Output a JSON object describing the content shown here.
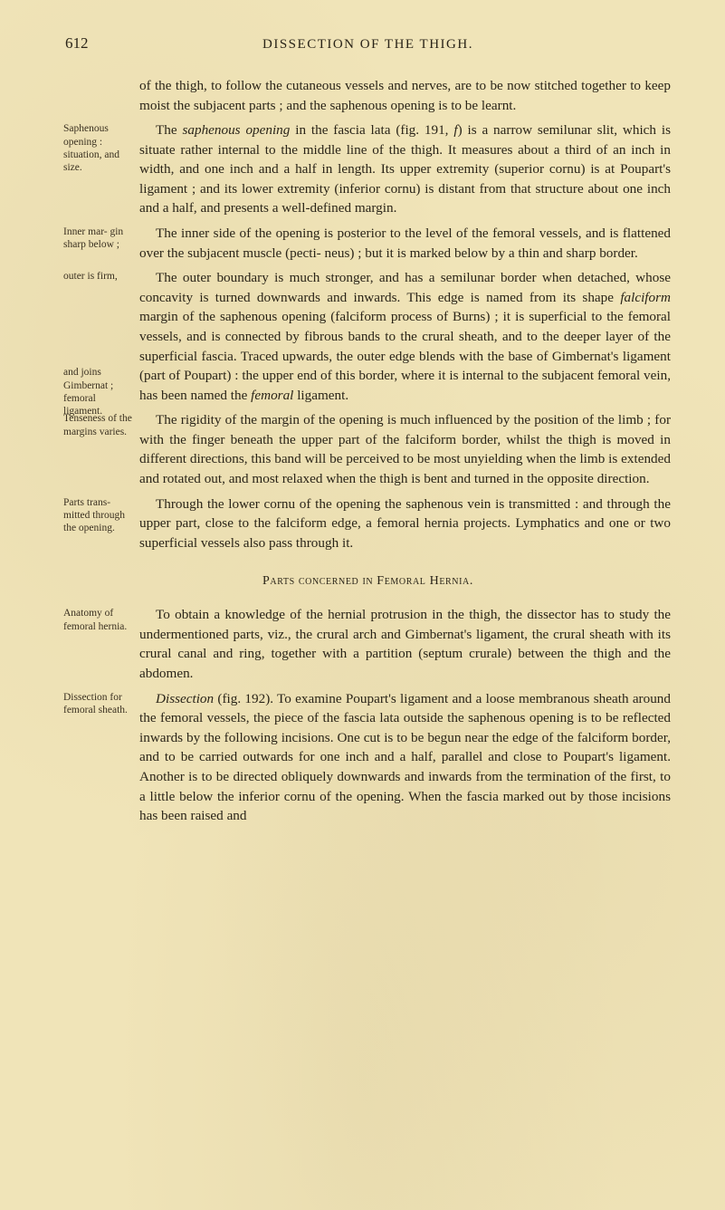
{
  "page_number": "612",
  "running_head": "DISSECTION OF THE THIGH.",
  "colors": {
    "paper": "#f0e4b8",
    "ink": "#2a2418",
    "margin_ink": "#3a3020"
  },
  "typography": {
    "body_fontsize_pt": 15.2,
    "margin_fontsize_pt": 11.5,
    "line_height": 1.42
  },
  "blocks": [
    {
      "margin": "",
      "text": "of the thigh, to follow the cutaneous vessels and nerves, are to be now stitched together to keep moist the subjacent parts ; and the saphenous opening is to be learnt.",
      "indent": false
    },
    {
      "margin": "Saphenous opening : situation, and size.",
      "text": "The <span class=\"italic\">saphenous opening</span> in the fascia lata (fig. 191, <span class=\"italic\">f</span>) is a narrow semilunar slit, which is situate rather internal to the middle line of the thigh. It measures about a third of an inch in width, and one inch and a half in length. Its upper extremity (superior cornu) is at Poupart's ligament ; and its lower extremity (inferior cornu) is distant from that structure about one inch and a half, and presents a well-defined margin.",
      "indent": true
    },
    {
      "margin": "Inner mar- gin sharp below ;",
      "text": "The inner side of the opening is posterior to the level of the femoral vessels, and is flattened over the subjacent muscle (pecti- neus) ; but it is marked below by a thin and sharp border.",
      "indent": true
    },
    {
      "margin": "outer is firm,",
      "text": "The outer boundary is much stronger, and has a semilunar border when detached, whose concavity is turned downwards and inwards. This edge is named from its shape <span class=\"italic\">falciform</span> margin of the saphenous opening (falciform process of Burns) ; it is superficial to the femoral vessels, and is connected by fibrous bands to the crural sheath, and to the deeper layer of the superficial fascia. Traced upwards, the outer edge blends with the base of Gimbernat's ligament (part of Poupart) : the upper end of this border, where it is internal to the subjacent femoral vein, has been named the <span class=\"italic\">femoral</span> ligament.",
      "indent": true,
      "margin2": "and joins Gimbernat ; femoral ligament.",
      "margin2_top": 108
    },
    {
      "margin": "Tenseness of the margins varies.",
      "text": "The rigidity of the margin of the opening is much influenced by the position of the limb ; for with the finger beneath the upper part of the falciform border, whilst the thigh is moved in different directions, this band will be perceived to be most unyielding when the limb is extended and rotated out, and most relaxed when the thigh is bent and turned in the opposite direction.",
      "indent": true
    },
    {
      "margin": "Parts trans- mitted through the opening.",
      "text": "Through the lower cornu of the opening the saphenous vein is transmitted : and through the upper part, close to the falciform edge, a femoral hernia projects. Lymphatics and one or two superficial vessels also pass through it.",
      "indent": true
    }
  ],
  "section_title": "Parts concerned in Femoral Hernia.",
  "blocks2": [
    {
      "margin": "Anatomy of femoral hernia.",
      "text": "To obtain a knowledge of the hernial protrusion in the thigh, the dissector has to study the undermentioned parts, viz., the crural arch and Gimbernat's ligament, the crural sheath with its crural canal and ring, together with a partition (septum crurale) between the thigh and the abdomen.",
      "indent": true
    },
    {
      "margin": "Dissection for femoral sheath.",
      "text": "<span class=\"italic\">Dissection</span> (fig. 192). To examine Poupart's ligament and a loose membranous sheath around the femoral vessels, the piece of the fascia lata outside the saphenous opening is to be reflected inwards by the following incisions. One cut is to be begun near the edge of the falciform border, and to be carried outwards for one inch and a half, parallel and close to Poupart's ligament. Another is to be directed obliquely downwards and inwards from the termination of the first, to a little below the inferior cornu of the opening. When the fascia marked out by those incisions has been raised and",
      "indent": true
    }
  ]
}
